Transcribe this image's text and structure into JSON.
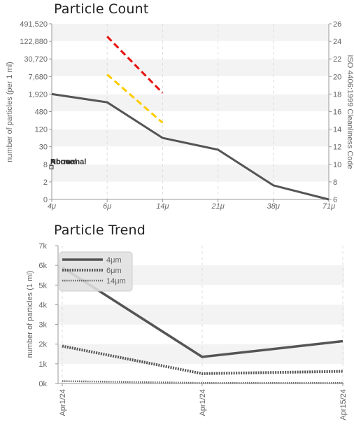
{
  "chart_data": [
    {
      "type": "line",
      "title": "Particle Count",
      "categories": [
        "4μ",
        "6μ",
        "14μ",
        "21μ",
        "38μ",
        "71μ"
      ],
      "ylabel": "number of particles (per 1 ml)",
      "y2label": "ISO 4406:1999 Cleanliness Code",
      "y_ticks": [
        "0",
        "2",
        "8",
        "30",
        "120",
        "480",
        "1,920",
        "7,680",
        "30,720",
        "122,880",
        "491,520"
      ],
      "y2_ticks": [
        "6",
        "8",
        "10",
        "12",
        "14",
        "16",
        "18",
        "20",
        "22",
        "24",
        "26"
      ],
      "scale": "iso-code (log2 bands)",
      "grid": "alternating horizontal bands",
      "series": [
        {
          "color": "#555555",
          "style": "solid",
          "values": [
            1920,
            1000,
            60,
            24,
            1.6,
            0
          ]
        },
        {
          "color": "#e81010",
          "style": "dashed",
          "values": [
            null,
            180000,
            2100,
            null,
            null,
            null
          ]
        },
        {
          "color": "#ffcc00",
          "style": "dashed",
          "values": [
            null,
            9000,
            200,
            null,
            null,
            null
          ]
        }
      ],
      "legend_overlap_text": [
        "Normal",
        "Above",
        "Abnormal"
      ],
      "legend_placement": "left-middle"
    },
    {
      "type": "line",
      "title": "Particle Trend",
      "categories": [
        "Apr1/24",
        "Apr1/24",
        "Apr15/24"
      ],
      "ylabel": "number of particles (1 ml)",
      "ylim": [
        0,
        7000
      ],
      "y_ticks": [
        "0k",
        "1k",
        "2k",
        "3k",
        "4k",
        "5k",
        "6k",
        "7k"
      ],
      "grid": "vertical dashed + alternating bands",
      "legend_placement": "top-left",
      "series": [
        {
          "name": "4μm",
          "color": "#555555",
          "style": "solid",
          "values": [
            5900,
            1350,
            2150
          ]
        },
        {
          "name": "6μm",
          "color": "#555555",
          "style": "dotted-thick",
          "values": [
            1900,
            500,
            620
          ]
        },
        {
          "name": "14μm",
          "color": "#666666",
          "style": "dotted-thin",
          "values": [
            120,
            30,
            30
          ]
        }
      ]
    }
  ]
}
